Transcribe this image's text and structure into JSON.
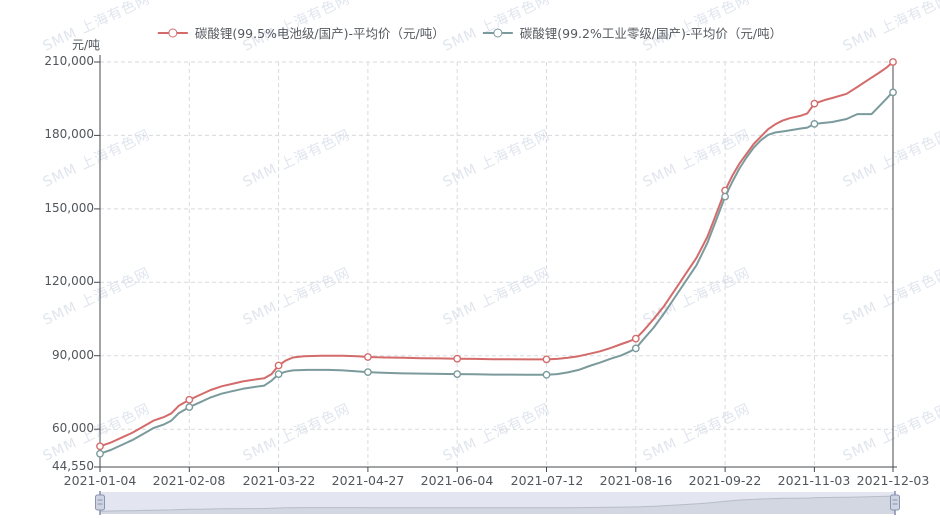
{
  "watermark": {
    "text": "SMM 上海有色网"
  },
  "colors": {
    "series_battery": "#d46b6b",
    "series_industrial": "#7b9a9c",
    "grid": "#d8dadd",
    "axis": "#45494e",
    "label": "#50565c",
    "watermark": "#e0e5ee",
    "slider_bg": "#e3e6f0",
    "slider_fill": "#d3d7e1",
    "slider_line": "#b6bcca",
    "slider_handle": "#8a93b0"
  },
  "legend": [
    {
      "label": "碳酸锂(99.5%电池级/国产)-平均价（元/吨）",
      "color": "#d46b6b"
    },
    {
      "label": "碳酸锂(99.2%工业零级/国产)-平均价（元/吨）",
      "color": "#7b9a9c"
    }
  ],
  "y_axis": {
    "unit": "元/吨",
    "ticks": [
      "210,000",
      "180,000",
      "150,000",
      "120,000",
      "90,000",
      "60,000",
      "44,550"
    ],
    "values": [
      210000,
      180000,
      150000,
      120000,
      90000,
      60000,
      44550
    ]
  },
  "x_axis": {
    "ticks": [
      "2021-01-04",
      "2021-02-08",
      "2021-03-22",
      "2021-04-27",
      "2021-06-04",
      "2021-07-12",
      "2021-08-16",
      "2021-09-22",
      "2021-11-03",
      "2021-12-03"
    ],
    "day_index": [
      0,
      25,
      50,
      75,
      100,
      125,
      150,
      175,
      200,
      222
    ]
  },
  "chart_data": {
    "type": "line",
    "title": "",
    "ylabel": "元/吨",
    "ylim": [
      44550,
      210000
    ],
    "x_range": [
      0,
      222
    ],
    "grid": true,
    "legend_position": "top",
    "x_tick_labels": [
      "2021-01-04",
      "2021-02-08",
      "2021-03-22",
      "2021-04-27",
      "2021-06-04",
      "2021-07-12",
      "2021-08-16",
      "2021-09-22",
      "2021-11-03",
      "2021-12-03"
    ],
    "x_tick_day_index": [
      0,
      25,
      50,
      75,
      100,
      125,
      150,
      175,
      200,
      222
    ],
    "marker_day_indices": [
      0,
      25,
      50,
      75,
      100,
      125,
      150,
      175,
      200,
      222
    ],
    "series": [
      {
        "name": "碳酸锂(99.5%电池级/国产)-平均价（元/吨）",
        "color": "#d46b6b",
        "points": [
          [
            0,
            53000
          ],
          [
            3,
            54500
          ],
          [
            6,
            56500
          ],
          [
            9,
            58500
          ],
          [
            12,
            61000
          ],
          [
            15,
            63500
          ],
          [
            18,
            65000
          ],
          [
            20,
            66500
          ],
          [
            22,
            69500
          ],
          [
            25,
            72000
          ],
          [
            28,
            74000
          ],
          [
            31,
            76000
          ],
          [
            34,
            77500
          ],
          [
            37,
            78500
          ],
          [
            40,
            79500
          ],
          [
            43,
            80200
          ],
          [
            46,
            80800
          ],
          [
            48,
            82500
          ],
          [
            50,
            86000
          ],
          [
            52,
            88000
          ],
          [
            54,
            89300
          ],
          [
            57,
            89800
          ],
          [
            62,
            90000
          ],
          [
            68,
            90000
          ],
          [
            72,
            89800
          ],
          [
            75,
            89500
          ],
          [
            80,
            89300
          ],
          [
            85,
            89200
          ],
          [
            90,
            89000
          ],
          [
            95,
            88900
          ],
          [
            100,
            88800
          ],
          [
            105,
            88700
          ],
          [
            110,
            88600
          ],
          [
            115,
            88600
          ],
          [
            120,
            88500
          ],
          [
            125,
            88500
          ],
          [
            128,
            88700
          ],
          [
            131,
            89200
          ],
          [
            134,
            89800
          ],
          [
            137,
            90800
          ],
          [
            140,
            91800
          ],
          [
            143,
            93200
          ],
          [
            146,
            94800
          ],
          [
            148,
            95800
          ],
          [
            150,
            97000
          ],
          [
            152,
            100000
          ],
          [
            155,
            105000
          ],
          [
            158,
            110500
          ],
          [
            161,
            117000
          ],
          [
            164,
            123500
          ],
          [
            167,
            130000
          ],
          [
            170,
            138500
          ],
          [
            172,
            146000
          ],
          [
            175,
            157500
          ],
          [
            177,
            163500
          ],
          [
            179,
            168500
          ],
          [
            181,
            172500
          ],
          [
            183,
            176500
          ],
          [
            185,
            179500
          ],
          [
            187,
            182500
          ],
          [
            189,
            184500
          ],
          [
            191,
            186000
          ],
          [
            193,
            187000
          ],
          [
            196,
            188000
          ],
          [
            198,
            189000
          ],
          [
            200,
            193000
          ],
          [
            203,
            194500
          ],
          [
            205,
            195300
          ],
          [
            209,
            197000
          ],
          [
            212,
            199800
          ],
          [
            215,
            202700
          ],
          [
            218,
            205500
          ],
          [
            220,
            207500
          ],
          [
            222,
            210000
          ]
        ]
      },
      {
        "name": "碳酸锂(99.2%工业零级/国产)-平均价（元/吨）",
        "color": "#7b9a9c",
        "points": [
          [
            0,
            50000
          ],
          [
            3,
            51500
          ],
          [
            6,
            53500
          ],
          [
            9,
            55500
          ],
          [
            12,
            58000
          ],
          [
            15,
            60500
          ],
          [
            18,
            62000
          ],
          [
            20,
            63500
          ],
          [
            22,
            66500
          ],
          [
            25,
            69000
          ],
          [
            28,
            71000
          ],
          [
            31,
            73000
          ],
          [
            34,
            74500
          ],
          [
            37,
            75500
          ],
          [
            40,
            76500
          ],
          [
            43,
            77200
          ],
          [
            46,
            77800
          ],
          [
            48,
            79800
          ],
          [
            50,
            82500
          ],
          [
            52,
            83500
          ],
          [
            54,
            84000
          ],
          [
            58,
            84200
          ],
          [
            64,
            84200
          ],
          [
            68,
            84000
          ],
          [
            72,
            83600
          ],
          [
            75,
            83300
          ],
          [
            80,
            83000
          ],
          [
            85,
            82800
          ],
          [
            90,
            82700
          ],
          [
            95,
            82600
          ],
          [
            100,
            82500
          ],
          [
            105,
            82400
          ],
          [
            110,
            82300
          ],
          [
            115,
            82300
          ],
          [
            120,
            82200
          ],
          [
            125,
            82200
          ],
          [
            128,
            82500
          ],
          [
            131,
            83200
          ],
          [
            134,
            84200
          ],
          [
            137,
            85800
          ],
          [
            140,
            87200
          ],
          [
            143,
            88800
          ],
          [
            146,
            90200
          ],
          [
            148,
            91500
          ],
          [
            150,
            93000
          ],
          [
            152,
            96500
          ],
          [
            155,
            101500
          ],
          [
            158,
            107500
          ],
          [
            161,
            114000
          ],
          [
            164,
            120500
          ],
          [
            167,
            127000
          ],
          [
            170,
            136000
          ],
          [
            172,
            143500
          ],
          [
            175,
            155000
          ],
          [
            177,
            161000
          ],
          [
            179,
            166500
          ],
          [
            181,
            171000
          ],
          [
            183,
            175000
          ],
          [
            185,
            178000
          ],
          [
            187,
            180200
          ],
          [
            189,
            181200
          ],
          [
            192,
            181800
          ],
          [
            196,
            182800
          ],
          [
            198,
            183200
          ],
          [
            200,
            184700
          ],
          [
            205,
            185500
          ],
          [
            209,
            186700
          ],
          [
            212,
            188700
          ],
          [
            216,
            188700
          ],
          [
            219,
            193200
          ],
          [
            221,
            196300
          ],
          [
            222,
            197600
          ]
        ]
      }
    ]
  }
}
